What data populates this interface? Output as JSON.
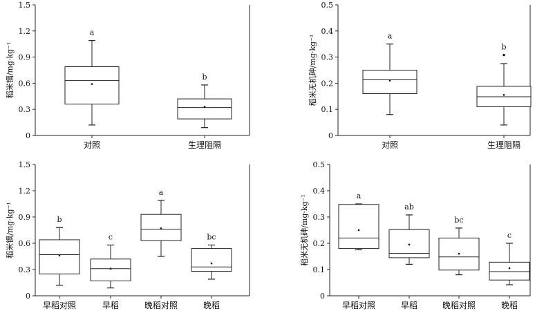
{
  "chart_data": [
    {
      "type": "box",
      "ylabel": "稻米镉/mg·kg⁻¹",
      "ylim": [
        0,
        1.5
      ],
      "yticks": [
        "0",
        "0.3",
        "0.6",
        "0.9",
        "1.2",
        "1.5"
      ],
      "categories": [
        "对照",
        "生理阻隔"
      ],
      "boxes": [
        {
          "min": 0.12,
          "q1": 0.36,
          "median": 0.63,
          "q3": 0.79,
          "max": 1.09,
          "mean": 0.59,
          "outliers": [],
          "letter": "a"
        },
        {
          "min": 0.09,
          "q1": 0.19,
          "median": 0.32,
          "q3": 0.42,
          "max": 0.58,
          "mean": 0.33,
          "outliers": [],
          "letter": "b"
        }
      ]
    },
    {
      "type": "box",
      "ylabel": "稻米无机砷/mg·kg⁻¹",
      "ylim": [
        0,
        0.5
      ],
      "yticks": [
        "0",
        "0.1",
        "0.2",
        "0.3",
        "0.4",
        "0.5"
      ],
      "categories": [
        "对照",
        "生理阻隔"
      ],
      "boxes": [
        {
          "min": 0.08,
          "q1": 0.16,
          "median": 0.213,
          "q3": 0.25,
          "max": 0.35,
          "mean": 0.21,
          "outliers": [],
          "letter": "a"
        },
        {
          "min": 0.04,
          "q1": 0.11,
          "median": 0.148,
          "q3": 0.188,
          "max": 0.275,
          "mean": 0.155,
          "outliers": [
            0.308
          ],
          "letter": "b"
        }
      ]
    },
    {
      "type": "box",
      "ylabel": "稻米镉/mg·kg⁻¹",
      "ylim": [
        0,
        1.5
      ],
      "yticks": [
        "0",
        "0.3",
        "0.6",
        "0.9",
        "1.2",
        "1.5"
      ],
      "categories": [
        "早稻对照",
        "早稻",
        "晚稻对照",
        "晚稻"
      ],
      "boxes": [
        {
          "min": 0.12,
          "q1": 0.25,
          "median": 0.47,
          "q3": 0.64,
          "max": 0.78,
          "mean": 0.46,
          "outliers": [],
          "letter": "b"
        },
        {
          "min": 0.09,
          "q1": 0.17,
          "median": 0.31,
          "q3": 0.42,
          "max": 0.58,
          "mean": 0.31,
          "outliers": [],
          "letter": "c"
        },
        {
          "min": 0.45,
          "q1": 0.63,
          "median": 0.76,
          "q3": 0.93,
          "max": 1.09,
          "mean": 0.77,
          "outliers": [],
          "letter": "a"
        },
        {
          "min": 0.19,
          "q1": 0.28,
          "median": 0.33,
          "q3": 0.54,
          "max": 0.58,
          "mean": 0.37,
          "outliers": [],
          "letter": "bc"
        }
      ]
    },
    {
      "type": "box",
      "ylabel": "稻米无机砷/mg·kg⁻¹",
      "ylim": [
        0,
        0.5
      ],
      "yticks": [
        "0",
        "0.1",
        "0.2",
        "0.3",
        "0.4",
        "0.5"
      ],
      "categories": [
        "早稻对照",
        "早稻",
        "晚稻对照",
        "晚稻"
      ],
      "boxes": [
        {
          "min": 0.175,
          "q1": 0.18,
          "median": 0.22,
          "q3": 0.348,
          "max": 0.35,
          "mean": 0.25,
          "outliers": [],
          "letter": "a"
        },
        {
          "min": 0.12,
          "q1": 0.145,
          "median": 0.162,
          "q3": 0.252,
          "max": 0.308,
          "mean": 0.195,
          "outliers": [],
          "letter": "ab"
        },
        {
          "min": 0.08,
          "q1": 0.098,
          "median": 0.148,
          "q3": 0.22,
          "max": 0.258,
          "mean": 0.16,
          "outliers": [],
          "letter": "bc"
        },
        {
          "min": 0.042,
          "q1": 0.06,
          "median": 0.092,
          "q3": 0.128,
          "max": 0.2,
          "mean": 0.105,
          "outliers": [],
          "letter": "c"
        }
      ]
    }
  ]
}
